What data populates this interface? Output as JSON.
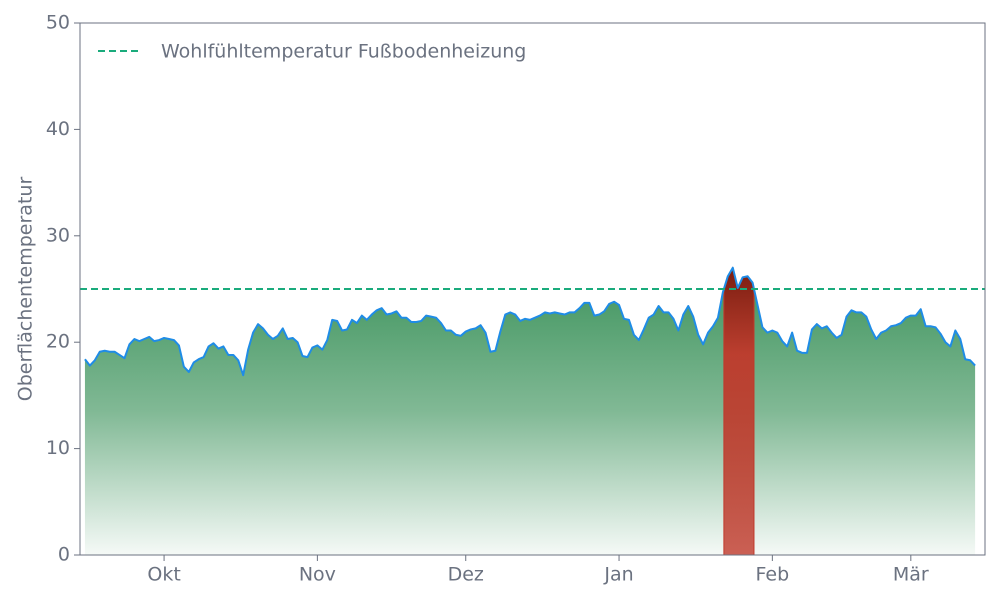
{
  "chart_data": {
    "type": "area",
    "ylabel": "Oberflächentemperatur",
    "xlim": [
      -17,
      166
    ],
    "xticks": [
      {
        "value": 0,
        "label": "Okt"
      },
      {
        "value": 31,
        "label": "Nov"
      },
      {
        "value": 61,
        "label": "Dez"
      },
      {
        "value": 92,
        "label": "Jan"
      },
      {
        "value": 123,
        "label": "Feb"
      },
      {
        "value": 151,
        "label": "Mär"
      }
    ],
    "ylim": [
      0,
      50
    ],
    "yticks": [
      0,
      10,
      20,
      30,
      40,
      50
    ],
    "x": [
      -16,
      -15,
      -14,
      -13,
      -12,
      -11,
      -10,
      -9,
      -8,
      -7,
      -6,
      -5,
      -4,
      -3,
      -2,
      -1,
      0,
      1,
      2,
      3,
      4,
      5,
      6,
      7,
      8,
      9,
      10,
      11,
      12,
      13,
      14,
      15,
      16,
      17,
      18,
      19,
      20,
      21,
      22,
      23,
      24,
      25,
      26,
      27,
      28,
      29,
      30,
      31,
      32,
      33,
      34,
      35,
      36,
      37,
      38,
      39,
      40,
      41,
      42,
      43,
      44,
      45,
      46,
      47,
      48,
      49,
      50,
      51,
      52,
      53,
      54,
      55,
      56,
      57,
      58,
      59,
      60,
      61,
      62,
      63,
      64,
      65,
      66,
      67,
      68,
      69,
      70,
      71,
      72,
      73,
      74,
      75,
      76,
      77,
      78,
      79,
      80,
      81,
      82,
      83,
      84,
      85,
      86,
      87,
      88,
      89,
      90,
      91,
      92,
      93,
      94,
      95,
      96,
      97,
      98,
      99,
      100,
      101,
      102,
      103,
      104,
      105,
      106,
      107,
      108,
      109,
      110,
      111,
      112,
      113,
      114,
      115,
      116,
      117,
      118,
      119,
      120,
      121,
      122,
      123,
      124,
      125,
      126,
      127,
      128,
      129,
      130,
      131,
      132,
      133,
      134,
      135,
      136,
      137,
      138,
      139,
      140,
      141,
      142,
      143,
      144,
      145,
      146,
      147,
      148,
      149,
      150,
      151,
      152,
      153,
      154,
      155,
      156,
      157,
      158,
      159,
      160,
      161,
      162,
      163,
      164
    ],
    "values": [
      18.4,
      17.8,
      18.3,
      19.1,
      19.2,
      19.1,
      19.1,
      18.8,
      18.5,
      19.8,
      20.3,
      20.1,
      20.3,
      20.5,
      20.1,
      20.2,
      20.4,
      20.3,
      20.2,
      19.7,
      17.7,
      17.2,
      18.1,
      18.4,
      18.6,
      19.6,
      19.9,
      19.4,
      19.6,
      18.8,
      18.8,
      18.3,
      16.9,
      19.3,
      20.9,
      21.7,
      21.3,
      20.7,
      20.3,
      20.6,
      21.3,
      20.3,
      20.4,
      20.0,
      18.7,
      18.6,
      19.5,
      19.7,
      19.3,
      20.2,
      22.1,
      22.0,
      21.1,
      21.2,
      22.1,
      21.8,
      22.5,
      22.1,
      22.6,
      23.0,
      23.2,
      22.6,
      22.7,
      22.9,
      22.3,
      22.3,
      21.9,
      21.9,
      22.0,
      22.5,
      22.4,
      22.3,
      21.8,
      21.1,
      21.1,
      20.7,
      20.6,
      21.0,
      21.2,
      21.3,
      21.6,
      20.9,
      19.1,
      19.2,
      21.0,
      22.6,
      22.8,
      22.6,
      22.0,
      22.2,
      22.1,
      22.3,
      22.5,
      22.8,
      22.7,
      22.8,
      22.7,
      22.6,
      22.8,
      22.8,
      23.2,
      23.7,
      23.7,
      22.5,
      22.6,
      22.9,
      23.6,
      23.8,
      23.5,
      22.2,
      22.1,
      20.7,
      20.2,
      21.2,
      22.3,
      22.6,
      23.4,
      22.8,
      22.8,
      22.2,
      21.1,
      22.6,
      23.4,
      22.4,
      20.7,
      19.8,
      20.9,
      21.5,
      22.3,
      24.7,
      26.2,
      27.0,
      25.1,
      26.1,
      26.2,
      25.6,
      23.5,
      21.4,
      20.9,
      21.1,
      20.9,
      20.1,
      19.6,
      20.9,
      19.2,
      19.0,
      19.0,
      21.2,
      21.7,
      21.3,
      21.5,
      20.9,
      20.4,
      20.7,
      22.4,
      23.0,
      22.8,
      22.8,
      22.4,
      21.2,
      20.3,
      20.9,
      21.1,
      21.5,
      21.6,
      21.8,
      22.3,
      22.5,
      22.5,
      23.1,
      21.5,
      21.5,
      21.4,
      20.8,
      20.0,
      19.6,
      21.1,
      20.3,
      18.4,
      18.3,
      17.8
    ],
    "color": "#1f8ce6",
    "fill_color": "#3d935c",
    "above_color": "#c0392b",
    "threshold": {
      "name": "Wohlfühltemperatur Fußbodenheizung",
      "value": 25,
      "color": "#1aab7c"
    },
    "legend": "upper left"
  }
}
